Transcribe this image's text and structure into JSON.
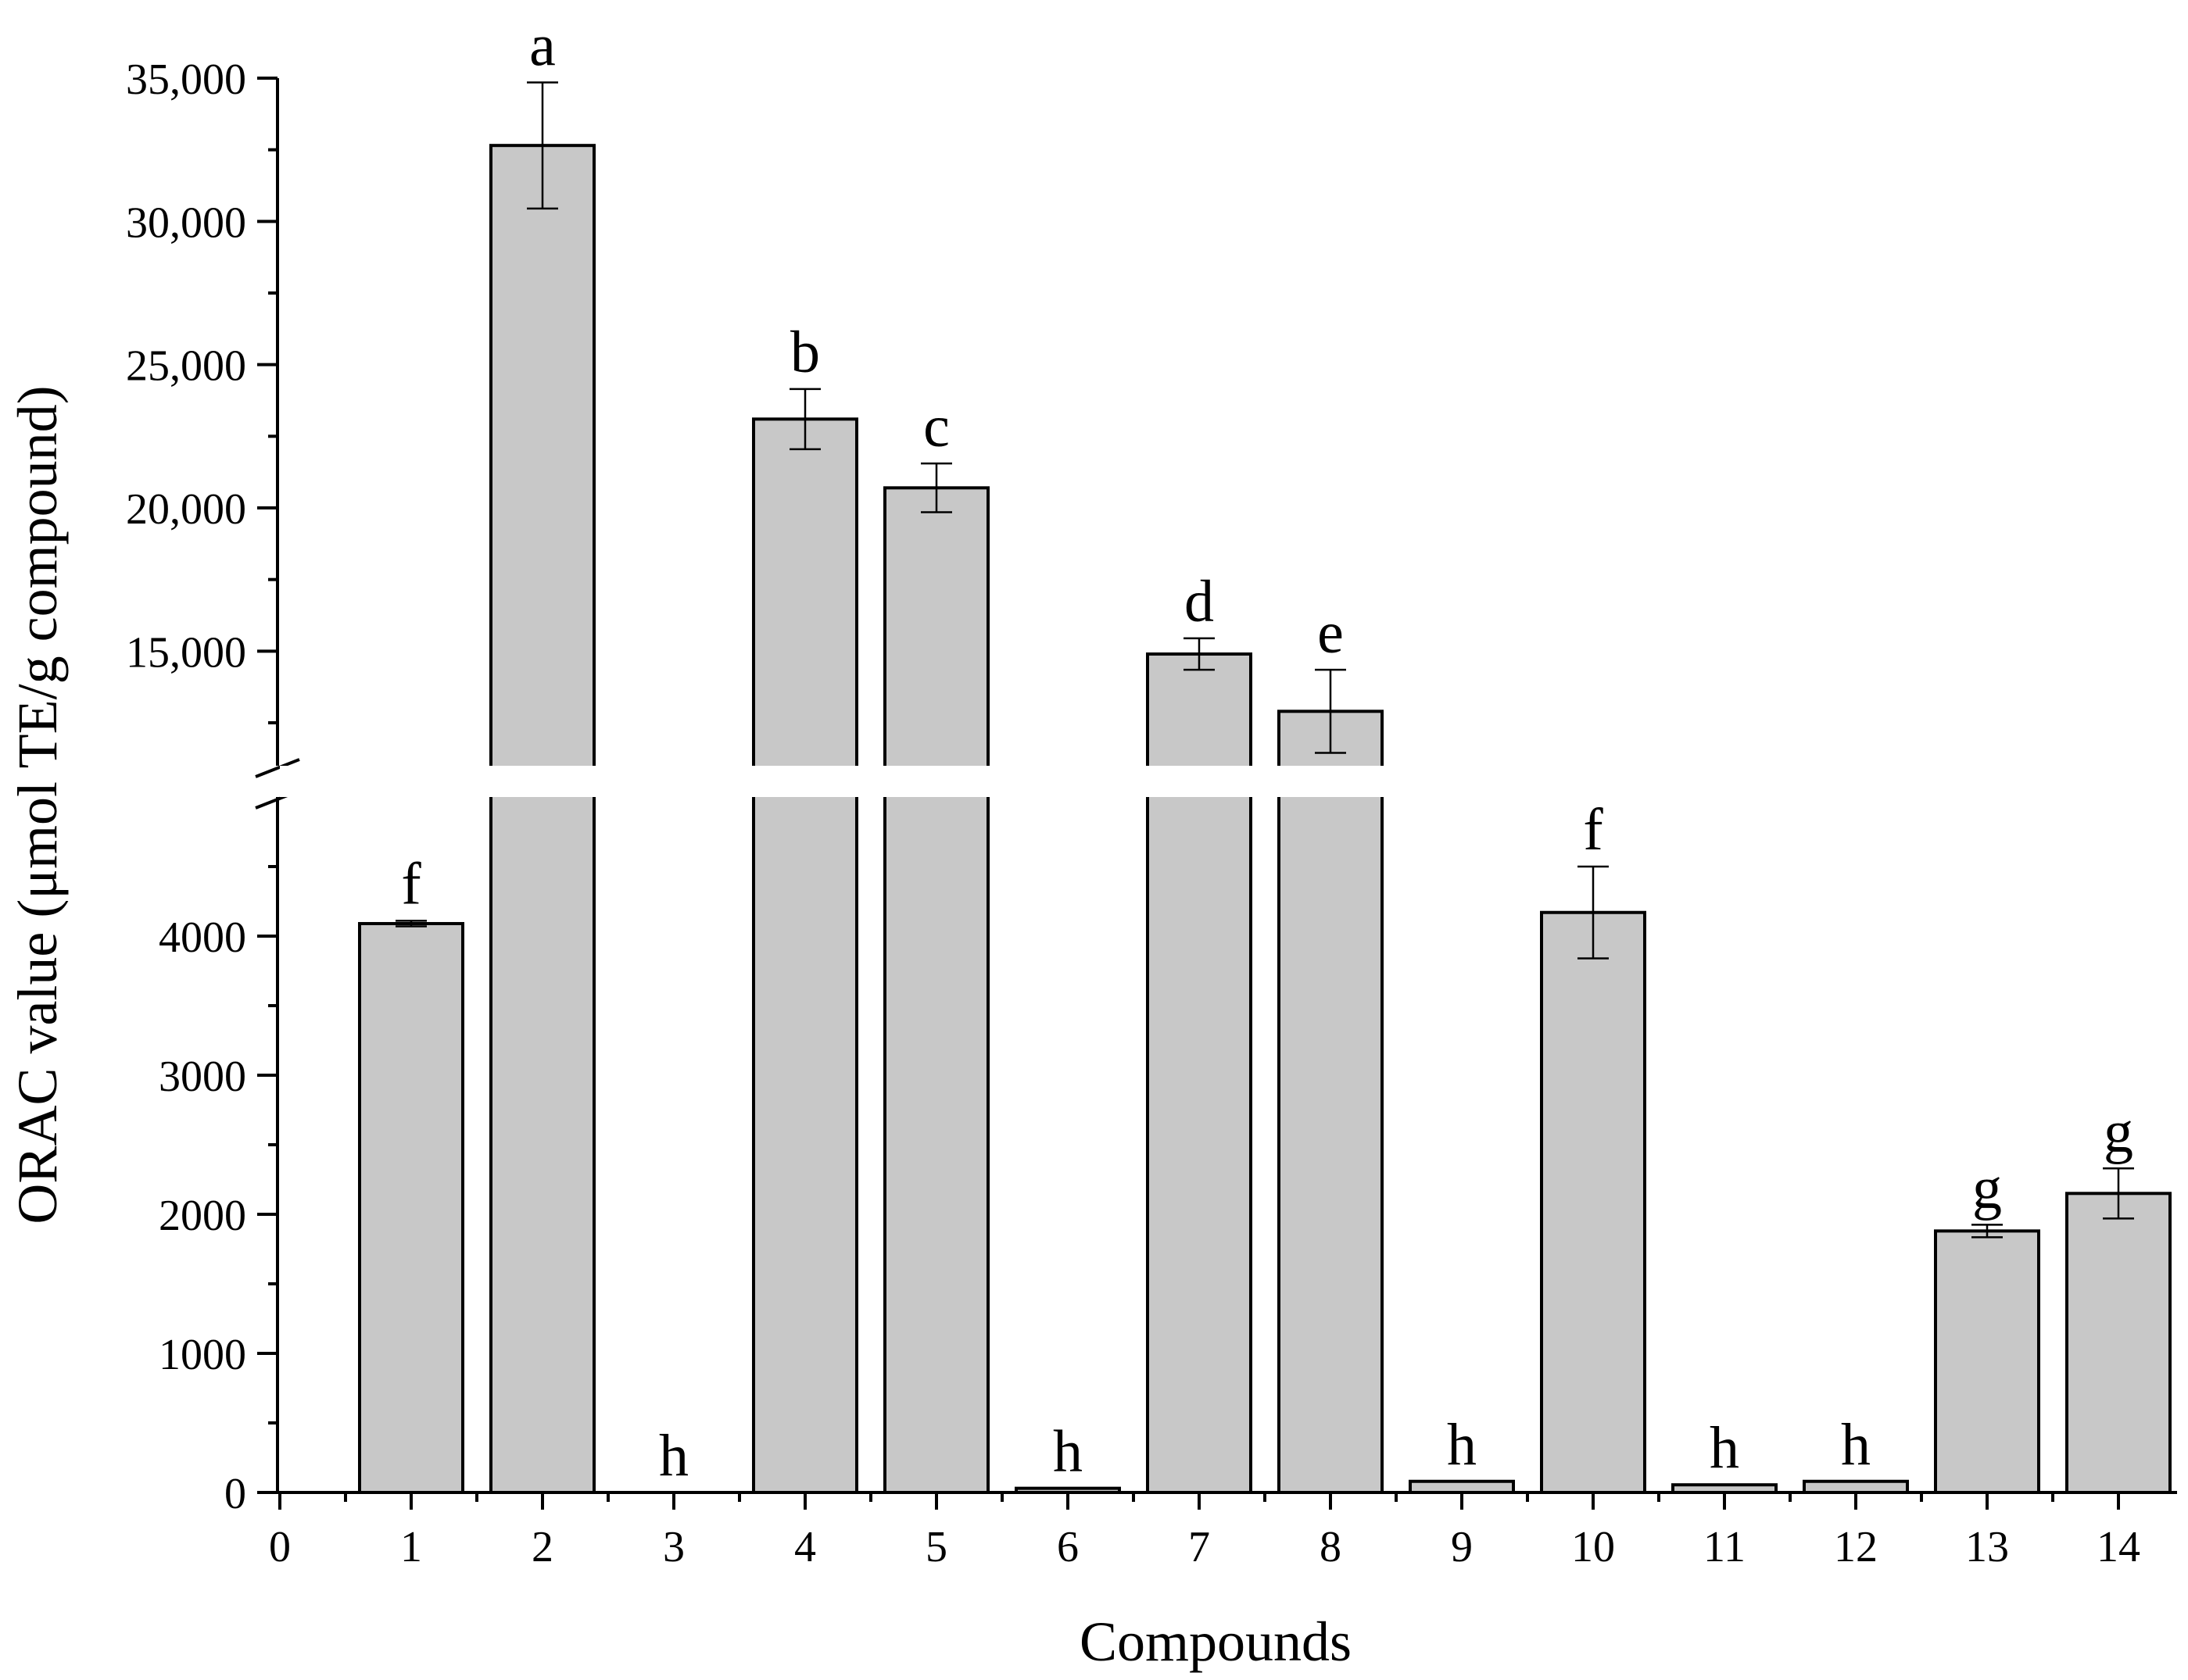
{
  "chart_data": {
    "type": "bar",
    "xlabel": "Compounds",
    "ylabel": "ORAC value (μmol TE/g compound)",
    "x_ticks": [
      "0",
      "1",
      "2",
      "3",
      "4",
      "5",
      "6",
      "7",
      "8",
      "9",
      "10",
      "11",
      "12",
      "13",
      "14"
    ],
    "x_range": [
      0,
      14.3
    ],
    "y_axis_break": true,
    "y_lower_range": [
      0,
      5000
    ],
    "y_upper_range": [
      11000,
      35000
    ],
    "y_lower_ticks": [
      0,
      1000,
      2000,
      3000,
      4000
    ],
    "y_lower_tick_labels": [
      "0",
      "1000",
      "2000",
      "3000",
      "4000"
    ],
    "y_upper_ticks": [
      15000,
      20000,
      25000,
      30000,
      35000
    ],
    "y_upper_tick_labels": [
      "15,000",
      "20,000",
      "25,000",
      "30,000",
      "35,000"
    ],
    "categories": [
      "1",
      "2",
      "3",
      "4",
      "5",
      "6",
      "7",
      "8",
      "9",
      "10",
      "11",
      "12",
      "13",
      "14"
    ],
    "values": [
      4090,
      32650,
      0,
      23100,
      20700,
      30,
      14900,
      12900,
      80,
      4170,
      55,
      80,
      1880,
      2150
    ],
    "errors": [
      20,
      2200,
      0,
      1050,
      850,
      0,
      550,
      1450,
      0,
      330,
      0,
      0,
      45,
      180
    ],
    "significance_letters": [
      "f",
      "a",
      "h",
      "b",
      "c",
      "h",
      "d",
      "e",
      "h",
      "f",
      "h",
      "h",
      "g",
      "g"
    ],
    "grid": false,
    "legend": "none",
    "bar_color": "#c8c8c8"
  }
}
